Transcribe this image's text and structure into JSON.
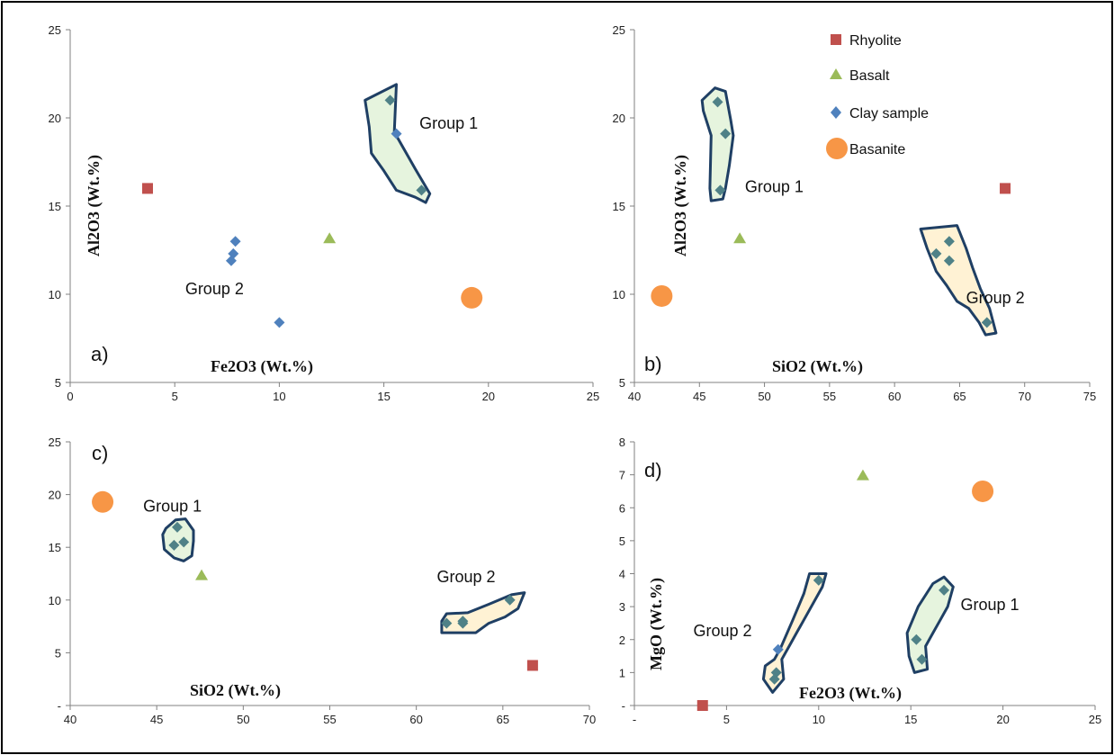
{
  "chart_data": [
    {
      "type": "scatter",
      "panel_label": "a)",
      "xlabel": "Fe2O3 (Wt.%)",
      "ylabel": "Al2O3 (Wt.%)",
      "xlim": [
        0,
        25
      ],
      "ylim": [
        5,
        25
      ],
      "xticks": [
        "0",
        "5",
        "10",
        "15",
        "20",
        "25"
      ],
      "yticks": [
        "5",
        "10",
        "15",
        "20",
        "25"
      ],
      "series": [
        {
          "name": "Rhyolite",
          "marker": "square",
          "color": "#c0504d",
          "points": [
            [
              3.7,
              16.0
            ]
          ]
        },
        {
          "name": "Basalt",
          "marker": "triangle",
          "color": "#9bbb59",
          "points": [
            [
              12.4,
              13.2
            ]
          ]
        },
        {
          "name": "Clay sample",
          "marker": "diamond",
          "color": "#4f81bd",
          "points": [
            [
              7.9,
              13.0
            ],
            [
              7.8,
              12.3
            ],
            [
              7.7,
              11.9
            ],
            [
              10.0,
              8.4
            ],
            [
              15.3,
              21.0
            ],
            [
              15.6,
              19.1
            ],
            [
              16.8,
              15.9
            ]
          ]
        },
        {
          "name": "Basanite",
          "marker": "circle",
          "color": "#f79646",
          "points": [
            [
              19.2,
              9.8
            ]
          ]
        }
      ],
      "groups": [
        {
          "label": "Group 1",
          "label_at": [
            16.7,
            19.4
          ],
          "fill": "#e6f4de",
          "outline": [
            [
              14.1,
              21.0
            ],
            [
              15.6,
              21.9
            ],
            [
              15.5,
              19.2
            ],
            [
              16.5,
              17.1
            ],
            [
              17.2,
              15.7
            ],
            [
              17.0,
              15.2
            ],
            [
              16.5,
              15.5
            ],
            [
              15.6,
              15.9
            ],
            [
              15.0,
              17.0
            ],
            [
              14.4,
              18.0
            ],
            [
              14.3,
              19.5
            ]
          ]
        },
        {
          "label": "Group 2",
          "label_at": [
            5.5,
            10.0
          ],
          "fill": "none",
          "outline": []
        }
      ]
    },
    {
      "type": "scatter",
      "panel_label": "b)",
      "xlabel": "SiO2 (Wt.%)",
      "ylabel": "Al2O3 (Wt.%)",
      "xlim": [
        40,
        75
      ],
      "ylim": [
        5,
        25
      ],
      "xticks": [
        "40",
        "45",
        "50",
        "55",
        "60",
        "65",
        "70",
        "75"
      ],
      "yticks": [
        "5",
        "10",
        "15",
        "20",
        "25"
      ],
      "series": [
        {
          "name": "Rhyolite",
          "marker": "square",
          "color": "#c0504d",
          "points": [
            [
              68.5,
              16.0
            ]
          ]
        },
        {
          "name": "Basalt",
          "marker": "triangle",
          "color": "#9bbb59",
          "points": [
            [
              48.1,
              13.2
            ]
          ]
        },
        {
          "name": "Clay sample",
          "marker": "diamond",
          "color": "#4f81bd",
          "points": [
            [
              46.4,
              20.9
            ],
            [
              47.0,
              19.1
            ],
            [
              46.6,
              15.9
            ],
            [
              63.2,
              12.3
            ],
            [
              64.2,
              13.0
            ],
            [
              64.2,
              11.9
            ],
            [
              67.1,
              8.4
            ]
          ]
        },
        {
          "name": "Basanite",
          "marker": "circle",
          "color": "#f79646",
          "points": [
            [
              42.1,
              9.9
            ]
          ]
        }
      ],
      "groups": [
        {
          "label": "Group 1",
          "label_at": [
            48.5,
            15.8
          ],
          "fill": "#e6f4de",
          "outline": [
            [
              45.2,
              21.0
            ],
            [
              46.2,
              21.7
            ],
            [
              47.0,
              21.5
            ],
            [
              47.4,
              19.9
            ],
            [
              47.6,
              19.0
            ],
            [
              47.3,
              17.3
            ],
            [
              47.0,
              16.0
            ],
            [
              46.8,
              15.4
            ],
            [
              45.9,
              15.3
            ],
            [
              45.8,
              16.0
            ],
            [
              45.9,
              19.0
            ],
            [
              45.3,
              20.4
            ]
          ]
        },
        {
          "label": "Group 2",
          "label_at": [
            65.5,
            9.5
          ],
          "fill": "#fff2d4",
          "outline": [
            [
              62.0,
              13.7
            ],
            [
              64.8,
              13.9
            ],
            [
              65.5,
              12.6
            ],
            [
              66.0,
              11.5
            ],
            [
              66.6,
              10.3
            ],
            [
              67.3,
              9.2
            ],
            [
              67.8,
              7.8
            ],
            [
              67.0,
              7.7
            ],
            [
              66.5,
              8.4
            ],
            [
              65.7,
              9.2
            ],
            [
              64.8,
              9.6
            ],
            [
              64.0,
              10.5
            ],
            [
              63.2,
              11.3
            ],
            [
              62.5,
              12.6
            ]
          ]
        }
      ]
    },
    {
      "type": "scatter",
      "panel_label": "c)",
      "xlabel": "SiO2 (Wt.%)",
      "ylabel": "",
      "xlim": [
        40,
        72
      ],
      "ylim": [
        0,
        25
      ],
      "xticks": [
        "40",
        "45",
        "50",
        "55",
        "60",
        "65",
        "70"
      ],
      "yticks": [
        "-",
        "5",
        "10",
        "15",
        "20",
        "25"
      ],
      "series": [
        {
          "name": "Rhyolite",
          "marker": "square",
          "color": "#c0504d",
          "points": [
            [
              68.5,
              3.8
            ]
          ]
        },
        {
          "name": "Basalt",
          "marker": "triangle",
          "color": "#9bbb59",
          "points": [
            [
              48.1,
              12.4
            ]
          ]
        },
        {
          "name": "Clay sample",
          "marker": "diamond",
          "color": "#4f81bd",
          "points": [
            [
              46.6,
              16.9
            ],
            [
              47.0,
              15.5
            ],
            [
              46.4,
              15.2
            ],
            [
              63.2,
              7.8
            ],
            [
              64.2,
              7.8
            ],
            [
              64.2,
              8.0
            ],
            [
              67.1,
              10.0
            ]
          ]
        },
        {
          "name": "Basanite",
          "marker": "circle",
          "color": "#f79646",
          "points": [
            [
              42.0,
              19.3
            ]
          ]
        }
      ],
      "groups": [
        {
          "label": "Group 1",
          "label_at": [
            44.5,
            18.4
          ],
          "fill": "#e6f4de",
          "outline": [
            [
              45.9,
              16.8
            ],
            [
              46.5,
              17.6
            ],
            [
              47.1,
              17.7
            ],
            [
              47.6,
              16.6
            ],
            [
              47.6,
              15.6
            ],
            [
              47.5,
              14.2
            ],
            [
              47.0,
              13.7
            ],
            [
              46.4,
              14.0
            ],
            [
              45.8,
              14.8
            ],
            [
              45.7,
              16.2
            ]
          ]
        },
        {
          "label": "Group 2",
          "label_at": [
            62.6,
            11.7
          ],
          "fill": "#fff2d4",
          "outline": [
            [
              63.2,
              8.7
            ],
            [
              64.5,
              8.8
            ],
            [
              65.8,
              9.6
            ],
            [
              67.2,
              10.5
            ],
            [
              68.0,
              10.7
            ],
            [
              67.6,
              9.2
            ],
            [
              66.8,
              8.4
            ],
            [
              65.8,
              7.8
            ],
            [
              65.0,
              6.9
            ],
            [
              62.9,
              6.9
            ],
            [
              62.9,
              8.0
            ]
          ]
        }
      ]
    },
    {
      "type": "scatter",
      "panel_label": "d)",
      "xlabel": "Fe2O3 (Wt.%)",
      "ylabel": "MgO (Wt.%)",
      "xlim": [
        0,
        25
      ],
      "ylim": [
        0,
        8
      ],
      "xticks": [
        "-",
        "5",
        "10",
        "15",
        "20",
        "25"
      ],
      "yticks": [
        "-",
        "1",
        "2",
        "3",
        "4",
        "5",
        "6",
        "7",
        "8"
      ],
      "series": [
        {
          "name": "Rhyolite",
          "marker": "square",
          "color": "#c0504d",
          "points": [
            [
              3.7,
              0.0
            ]
          ]
        },
        {
          "name": "Basalt",
          "marker": "triangle",
          "color": "#9bbb59",
          "points": [
            [
              12.4,
              7.0
            ]
          ]
        },
        {
          "name": "Clay sample",
          "marker": "diamond",
          "color": "#4f81bd",
          "points": [
            [
              7.8,
              1.7
            ],
            [
              7.7,
              1.0
            ],
            [
              7.6,
              0.8
            ],
            [
              10.0,
              3.8
            ],
            [
              15.3,
              2.0
            ],
            [
              15.6,
              1.4
            ],
            [
              16.8,
              3.5
            ]
          ]
        },
        {
          "name": "Basanite",
          "marker": "circle",
          "color": "#f79646",
          "points": [
            [
              18.9,
              6.5
            ]
          ]
        }
      ],
      "groups": [
        {
          "label": "Group 1",
          "label_at": [
            17.7,
            2.9
          ],
          "fill": "#e6f4de",
          "outline": [
            [
              14.8,
              2.2
            ],
            [
              15.4,
              3.0
            ],
            [
              16.2,
              3.7
            ],
            [
              16.8,
              3.9
            ],
            [
              17.3,
              3.6
            ],
            [
              17.0,
              3.0
            ],
            [
              16.6,
              2.6
            ],
            [
              16.2,
              2.2
            ],
            [
              15.8,
              1.8
            ],
            [
              15.9,
              1.1
            ],
            [
              15.2,
              1.0
            ],
            [
              14.9,
              1.5
            ]
          ]
        },
        {
          "label": "Group 2",
          "label_at": [
            3.2,
            2.1
          ],
          "fill": "#fff2d4",
          "outline": [
            [
              7.9,
              1.7
            ],
            [
              8.6,
              2.6
            ],
            [
              9.2,
              3.4
            ],
            [
              9.5,
              4.0
            ],
            [
              10.4,
              4.0
            ],
            [
              10.2,
              3.6
            ],
            [
              9.2,
              2.6
            ],
            [
              8.8,
              2.2
            ],
            [
              8.4,
              1.8
            ],
            [
              8.0,
              1.4
            ],
            [
              8.1,
              0.8
            ],
            [
              7.5,
              0.4
            ],
            [
              7.0,
              0.8
            ],
            [
              7.1,
              1.2
            ],
            [
              7.6,
              1.4
            ]
          ]
        }
      ]
    }
  ]
}
